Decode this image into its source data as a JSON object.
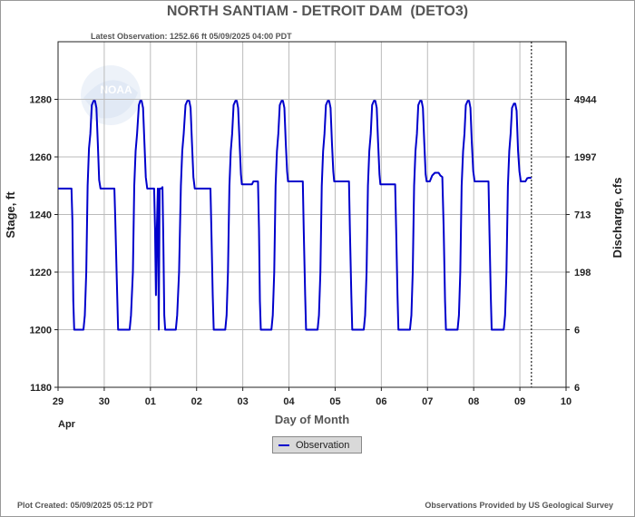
{
  "chart_data": {
    "type": "line",
    "title": "NORTH SANTIAM - DETROIT DAM  (DETO3)",
    "subtitle": "Latest Observation: 1252.66 ft 05/09/2025 04:00 PDT",
    "xlabel": "Day of Month",
    "ylabel_left": "Stage, ft",
    "ylabel_right": "Discharge, cfs",
    "x_tick_labels": [
      "29",
      "30",
      "01",
      "02",
      "03",
      "04",
      "05",
      "06",
      "07",
      "08",
      "09",
      "10"
    ],
    "x_month_label": "Apr",
    "xlim": [
      0,
      11
    ],
    "y_ticks_left": [
      1180,
      1200,
      1220,
      1240,
      1260,
      1280
    ],
    "ylim": [
      1180,
      1300
    ],
    "y_ticks_right": [
      {
        "stage": 1180,
        "label": "6"
      },
      {
        "stage": 1200,
        "label": "6"
      },
      {
        "stage": 1220,
        "label": "198"
      },
      {
        "stage": 1240,
        "label": "713"
      },
      {
        "stage": 1260,
        "label": "1997"
      },
      {
        "stage": 1280,
        "label": "4944"
      }
    ],
    "latest_observation_x": 10.25,
    "legend": {
      "placement": "bottom-center",
      "entries": [
        "Observation"
      ]
    },
    "series": [
      {
        "name": "Observation",
        "color": "#0000cc",
        "points": [
          [
            0.0,
            1249
          ],
          [
            0.29,
            1249
          ],
          [
            0.31,
            1238
          ],
          [
            0.33,
            1210
          ],
          [
            0.35,
            1200
          ],
          [
            0.55,
            1200
          ],
          [
            0.58,
            1205
          ],
          [
            0.61,
            1220
          ],
          [
            0.64,
            1250
          ],
          [
            0.67,
            1263
          ],
          [
            0.7,
            1268
          ],
          [
            0.73,
            1278
          ],
          [
            0.77,
            1279.5
          ],
          [
            0.8,
            1279.5
          ],
          [
            0.83,
            1277
          ],
          [
            0.86,
            1265
          ],
          [
            0.89,
            1252
          ],
          [
            0.92,
            1249
          ],
          [
            1.22,
            1249
          ],
          [
            1.24,
            1238
          ],
          [
            1.27,
            1218
          ],
          [
            1.3,
            1200
          ],
          [
            1.55,
            1200
          ],
          [
            1.58,
            1205
          ],
          [
            1.62,
            1220
          ],
          [
            1.65,
            1250
          ],
          [
            1.68,
            1262
          ],
          [
            1.71,
            1268
          ],
          [
            1.75,
            1278
          ],
          [
            1.78,
            1279.5
          ],
          [
            1.81,
            1279.5
          ],
          [
            1.84,
            1277
          ],
          [
            1.87,
            1265
          ],
          [
            1.9,
            1253
          ],
          [
            1.93,
            1249
          ],
          [
            2.08,
            1249
          ],
          [
            2.1,
            1235
          ],
          [
            2.12,
            1212
          ],
          [
            2.14,
            1235
          ],
          [
            2.16,
            1249
          ],
          [
            2.18,
            1200
          ],
          [
            2.2,
            1249
          ],
          [
            2.24,
            1249
          ],
          [
            2.26,
            1249.5
          ],
          [
            2.28,
            1230
          ],
          [
            2.3,
            1205
          ],
          [
            2.32,
            1200
          ],
          [
            2.55,
            1200
          ],
          [
            2.58,
            1205
          ],
          [
            2.62,
            1220
          ],
          [
            2.66,
            1250
          ],
          [
            2.69,
            1262
          ],
          [
            2.72,
            1268
          ],
          [
            2.76,
            1278
          ],
          [
            2.8,
            1279.5
          ],
          [
            2.84,
            1279.5
          ],
          [
            2.87,
            1277
          ],
          [
            2.9,
            1265
          ],
          [
            2.93,
            1253
          ],
          [
            2.96,
            1249
          ],
          [
            3.3,
            1249
          ],
          [
            3.32,
            1235
          ],
          [
            3.35,
            1212
          ],
          [
            3.37,
            1200
          ],
          [
            3.62,
            1200
          ],
          [
            3.65,
            1205
          ],
          [
            3.68,
            1220
          ],
          [
            3.71,
            1250
          ],
          [
            3.74,
            1262
          ],
          [
            3.77,
            1268
          ],
          [
            3.8,
            1278
          ],
          [
            3.84,
            1279.5
          ],
          [
            3.87,
            1279.5
          ],
          [
            3.9,
            1277
          ],
          [
            3.93,
            1265
          ],
          [
            3.96,
            1254
          ],
          [
            3.98,
            1250.5
          ],
          [
            4.2,
            1250.5
          ],
          [
            4.23,
            1251.5
          ],
          [
            4.33,
            1251.5
          ],
          [
            4.35,
            1235
          ],
          [
            4.37,
            1210
          ],
          [
            4.39,
            1200
          ],
          [
            4.62,
            1200
          ],
          [
            4.65,
            1205
          ],
          [
            4.68,
            1220
          ],
          [
            4.71,
            1250
          ],
          [
            4.74,
            1262
          ],
          [
            4.77,
            1268
          ],
          [
            4.8,
            1278
          ],
          [
            4.84,
            1279.5
          ],
          [
            4.87,
            1279.5
          ],
          [
            4.9,
            1277
          ],
          [
            4.93,
            1265
          ],
          [
            4.96,
            1255
          ],
          [
            4.98,
            1251.5
          ],
          [
            5.3,
            1251.5
          ],
          [
            5.32,
            1235
          ],
          [
            5.35,
            1212
          ],
          [
            5.37,
            1200
          ],
          [
            5.62,
            1200
          ],
          [
            5.65,
            1205
          ],
          [
            5.68,
            1220
          ],
          [
            5.71,
            1250
          ],
          [
            5.74,
            1262
          ],
          [
            5.77,
            1268
          ],
          [
            5.8,
            1278
          ],
          [
            5.84,
            1279.5
          ],
          [
            5.87,
            1279.5
          ],
          [
            5.9,
            1277
          ],
          [
            5.93,
            1265
          ],
          [
            5.96,
            1255
          ],
          [
            5.98,
            1251.5
          ],
          [
            6.3,
            1251.5
          ],
          [
            6.32,
            1235
          ],
          [
            6.35,
            1212
          ],
          [
            6.37,
            1200
          ],
          [
            6.62,
            1200
          ],
          [
            6.65,
            1205
          ],
          [
            6.68,
            1220
          ],
          [
            6.71,
            1250
          ],
          [
            6.74,
            1262
          ],
          [
            6.77,
            1268
          ],
          [
            6.8,
            1278
          ],
          [
            6.84,
            1279.5
          ],
          [
            6.87,
            1279.5
          ],
          [
            6.9,
            1277
          ],
          [
            6.93,
            1265
          ],
          [
            6.96,
            1254
          ],
          [
            6.98,
            1250.5
          ],
          [
            7.3,
            1250.5
          ],
          [
            7.32,
            1235
          ],
          [
            7.35,
            1212
          ],
          [
            7.37,
            1200
          ],
          [
            7.62,
            1200
          ],
          [
            7.65,
            1205
          ],
          [
            7.68,
            1220
          ],
          [
            7.71,
            1250
          ],
          [
            7.74,
            1262
          ],
          [
            7.77,
            1268
          ],
          [
            7.8,
            1278
          ],
          [
            7.84,
            1279.5
          ],
          [
            7.87,
            1279.5
          ],
          [
            7.9,
            1277
          ],
          [
            7.93,
            1265
          ],
          [
            7.96,
            1254
          ],
          [
            7.98,
            1251.5
          ],
          [
            8.05,
            1251.5
          ],
          [
            8.1,
            1253.5
          ],
          [
            8.16,
            1254.5
          ],
          [
            8.24,
            1254.5
          ],
          [
            8.28,
            1253.5
          ],
          [
            8.32,
            1253
          ],
          [
            8.35,
            1235
          ],
          [
            8.38,
            1210
          ],
          [
            8.4,
            1200
          ],
          [
            8.65,
            1200
          ],
          [
            8.68,
            1205
          ],
          [
            8.71,
            1220
          ],
          [
            8.74,
            1250
          ],
          [
            8.77,
            1262
          ],
          [
            8.8,
            1268
          ],
          [
            8.83,
            1278
          ],
          [
            8.87,
            1279.5
          ],
          [
            8.9,
            1279.5
          ],
          [
            8.93,
            1277
          ],
          [
            8.96,
            1265
          ],
          [
            8.99,
            1255
          ],
          [
            9.02,
            1251.5
          ],
          [
            9.32,
            1251.5
          ],
          [
            9.34,
            1235
          ],
          [
            9.37,
            1212
          ],
          [
            9.39,
            1200
          ],
          [
            9.65,
            1200
          ],
          [
            9.68,
            1205
          ],
          [
            9.71,
            1220
          ],
          [
            9.74,
            1250
          ],
          [
            9.77,
            1262
          ],
          [
            9.8,
            1268
          ],
          [
            9.83,
            1277
          ],
          [
            9.87,
            1278.5
          ],
          [
            9.9,
            1278.5
          ],
          [
            9.93,
            1276
          ],
          [
            9.96,
            1262
          ],
          [
            9.99,
            1255
          ],
          [
            10.02,
            1251.5
          ],
          [
            10.12,
            1251.5
          ],
          [
            10.16,
            1252.6
          ],
          [
            10.2,
            1252.8
          ],
          [
            10.25,
            1252.66
          ]
        ]
      }
    ]
  },
  "footer": {
    "plot_created": "Plot Created: 05/09/2025 05:12 PDT",
    "provider": "Observations Provided by US Geological Survey"
  },
  "logo": {
    "text": "NOAA"
  }
}
